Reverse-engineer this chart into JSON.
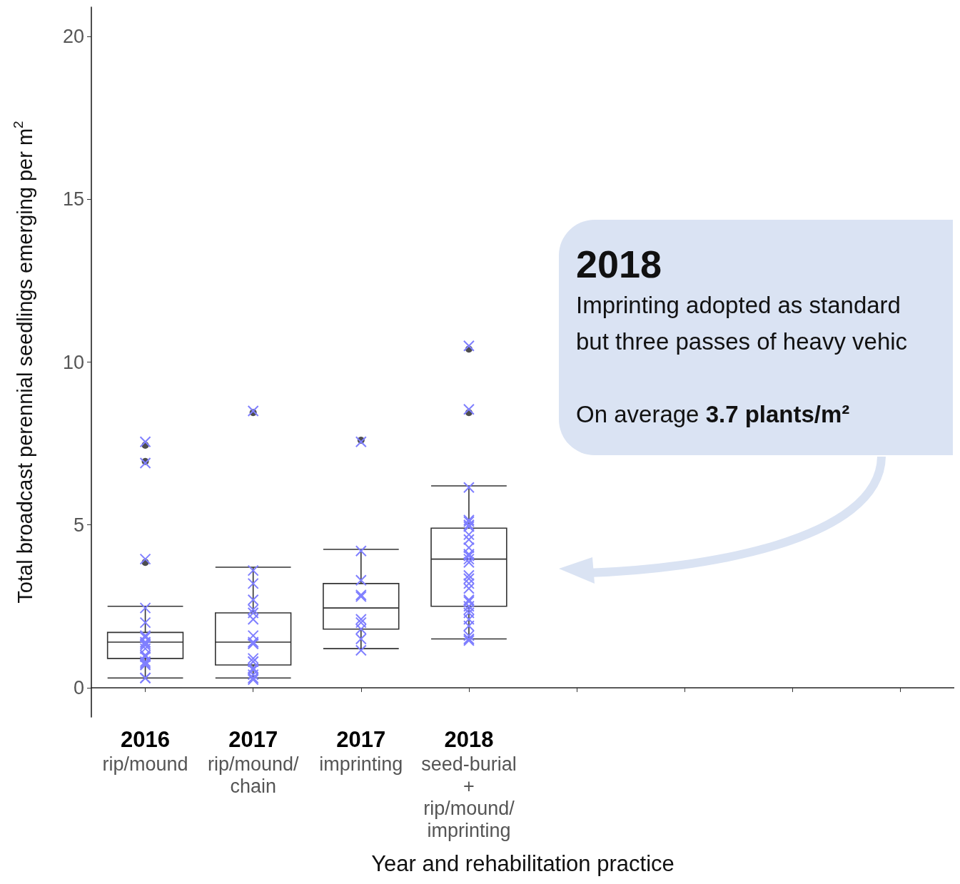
{
  "chart_data": {
    "type": "box",
    "categories": [
      "2016\nrip/mound",
      "2017\nrip/mound/\nchain",
      "2017\nimprinting",
      "2018\nseed-burial\n+\nrip/mound/\nimprinting",
      null,
      null,
      null,
      null
    ],
    "xlabel": "Year and rehabilitation practice",
    "ylabel": "Total broadcast perennial seedlings emerging per m$^{2}$",
    "ylim": [
      -0.9,
      20.9
    ],
    "yticks": [
      0,
      5,
      10,
      15,
      20
    ],
    "grid": false,
    "boxes": [
      {
        "low": 0.3,
        "q1": 0.9,
        "median": 1.4,
        "q3": 1.7,
        "high": 2.5,
        "outliers": [
          7.45,
          6.95,
          3.85
        ]
      },
      {
        "low": 0.3,
        "q1": 0.7,
        "median": 1.4,
        "q3": 2.3,
        "high": 3.7,
        "outliers": [
          8.45
        ]
      },
      {
        "low": 1.2,
        "q1": 1.8,
        "median": 2.45,
        "q3": 3.2,
        "high": 4.25,
        "outliers": [
          7.6
        ]
      },
      {
        "low": 1.5,
        "q1": 2.5,
        "median": 3.95,
        "q3": 4.9,
        "high": 6.2,
        "outliers": [
          10.4,
          8.45
        ]
      },
      null,
      null,
      null,
      null
    ],
    "series": [
      {
        "type": "scatter",
        "marker": "cross",
        "color": "#7f7fff",
        "x": [
          "2016\nrip/mound",
          "2016\nrip/mound",
          "2016\nrip/mound",
          "2016\nrip/mound",
          "2016\nrip/mound",
          "2016\nrip/mound",
          "2016\nrip/mound",
          "2016\nrip/mound",
          "2016\nrip/mound",
          "2016\nrip/mound",
          "2016\nrip/mound",
          "2016\nrip/mound",
          "2016\nrip/mound",
          "2016\nrip/mound",
          "2016\nrip/mound",
          "2016\nrip/mound",
          "2016\nrip/mound",
          "2016\nrip/mound",
          "2017\nrip/mound/\nchain",
          "2017\nrip/mound/\nchain",
          "2017\nrip/mound/\nchain",
          "2017\nrip/mound/\nchain",
          "2017\nrip/mound/\nchain",
          "2017\nrip/mound/\nchain",
          "2017\nrip/mound/\nchain",
          "2017\nrip/mound/\nchain",
          "2017\nrip/mound/\nchain",
          "2017\nrip/mound/\nchain",
          "2017\nrip/mound/\nchain",
          "2017\nrip/mound/\nchain",
          "2017\nrip/mound/\nchain",
          "2017\nrip/mound/\nchain",
          "2017\nrip/mound/\nchain",
          "2017\nrip/mound/\nchain",
          "2017\nrip/mound/\nchain",
          "2017\nrip/mound/\nchain",
          "2017\nrip/mound/\nchain",
          "2017\nimprinting",
          "2017\nimprinting",
          "2017\nimprinting",
          "2017\nimprinting",
          "2017\nimprinting",
          "2017\nimprinting",
          "2017\nimprinting",
          "2017\nimprinting",
          "2017\nimprinting",
          "2017\nimprinting",
          "2018\nseed-burial\n+\nrip/mound/\nimprinting",
          "2018\nseed-burial\n+\nrip/mound/\nimprinting",
          "2018\nseed-burial\n+\nrip/mound/\nimprinting",
          "2018\nseed-burial\n+\nrip/mound/\nimprinting",
          "2018\nseed-burial\n+\nrip/mound/\nimprinting",
          "2018\nseed-burial\n+\nrip/mound/\nimprinting",
          "2018\nseed-burial\n+\nrip/mound/\nimprinting",
          "2018\nseed-burial\n+\nrip/mound/\nimprinting",
          "2018\nseed-burial\n+\nrip/mound/\nimprinting",
          "2018\nseed-burial\n+\nrip/mound/\nimprinting",
          "2018\nseed-burial\n+\nrip/mound/\nimprinting",
          "2018\nseed-burial\n+\nrip/mound/\nimprinting",
          "2018\nseed-burial\n+\nrip/mound/\nimprinting",
          "2018\nseed-burial\n+\nrip/mound/\nimprinting",
          "2018\nseed-burial\n+\nrip/mound/\nimprinting",
          "2018\nseed-burial\n+\nrip/mound/\nimprinting",
          "2018\nseed-burial\n+\nrip/mound/\nimprinting",
          "2018\nseed-burial\n+\nrip/mound/\nimprinting",
          "2018\nseed-burial\n+\nrip/mound/\nimprinting",
          "2018\nseed-burial\n+\nrip/mound/\nimprinting",
          "2018\nseed-burial\n+\nrip/mound/\nimprinting",
          "2018\nseed-burial\n+\nrip/mound/\nimprinting",
          "2018\nseed-burial\n+\nrip/mound/\nimprinting",
          "2018\nseed-burial\n+\nrip/mound/\nimprinting",
          "2018\nseed-burial\n+\nrip/mound/\nimprinting",
          "2018\nseed-burial\n+\nrip/mound/\nimprinting",
          "2018\nseed-burial\n+\nrip/mound/\nimprinting",
          "2018\nseed-burial\n+\nrip/mound/\nimprinting"
        ],
        "values": [
          7.55,
          6.9,
          3.95,
          2.45,
          2.0,
          1.6,
          1.55,
          1.4,
          1.35,
          1.3,
          1.2,
          1.0,
          0.95,
          0.8,
          0.75,
          0.7,
          0.3,
          0.3,
          8.5,
          3.6,
          3.2,
          2.7,
          2.4,
          2.3,
          2.1,
          1.6,
          1.4,
          1.35,
          1.35,
          0.9,
          0.8,
          0.8,
          0.6,
          0.55,
          0.4,
          0.3,
          0.25,
          7.55,
          4.2,
          3.3,
          2.85,
          2.8,
          2.1,
          2.0,
          1.8,
          1.5,
          1.15,
          10.5,
          8.55,
          6.15,
          5.15,
          5.1,
          5.0,
          4.95,
          4.7,
          4.55,
          4.3,
          4.1,
          4.05,
          3.95,
          3.85,
          3.45,
          3.35,
          3.2,
          3.05,
          2.7,
          2.65,
          2.5,
          2.4,
          2.3,
          2.1,
          1.9,
          1.6,
          1.5,
          1.45
        ]
      }
    ],
    "annotations": [
      "2018",
      "Imprinting adopted as standard",
      "but three passes of heavy vehic",
      "On average 3.7 plants/m²"
    ]
  }
}
